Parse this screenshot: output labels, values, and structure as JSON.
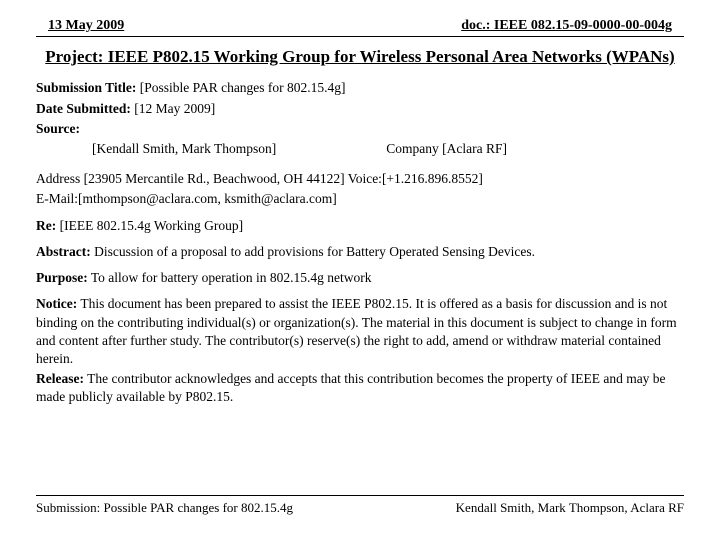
{
  "header": {
    "date": "13 May 2009",
    "docId": "doc.: IEEE 082.15-09-0000-00-004g"
  },
  "title": "Project: IEEE P802.15 Working Group for Wireless Personal Area Networks (WPANs)",
  "submission": {
    "titleLabel": "Submission Title:",
    "titleValue": " [Possible PAR changes for 802.15.4g]",
    "dateLabel": "Date Submitted:",
    "dateValue": " [12 May 2009]",
    "sourceLabel": "Source:",
    "sourceNames": "[Kendall Smith, Mark Thompson]",
    "companyLabel": "Company [Aclara RF]",
    "address": "Address [23905 Mercantile Rd., Beachwood, OH 44122]  Voice:[+1.216.896.8552]",
    "email": "E-Mail:[mthompson@aclara.com, ksmith@aclara.com]",
    "reLabel": "Re:",
    "reValue": " [IEEE 802.15.4g Working Group]",
    "abstractLabel": "Abstract:",
    "abstractValue": "  Discussion of a proposal to add provisions for Battery Operated Sensing Devices.",
    "purposeLabel": "Purpose:",
    "purposeValue": "  To allow for battery operation in 802.15.4g network",
    "noticeLabel": "Notice:",
    "noticeValue": "     This document has been prepared to assist the IEEE P802.15.  It is offered as a basis for discussion and is not binding on the contributing individual(s) or organization(s). The material in this document is subject to change in form and content after further study. The contributor(s) reserve(s) the right to add, amend or withdraw material contained herein.",
    "releaseLabel": "Release:",
    "releaseValue": "   The contributor acknowledges and accepts that this contribution becomes the property of IEEE and may be made publicly available by P802.15."
  },
  "footer": {
    "left": "Submission: Possible PAR changes for 802.15.4g",
    "right": "Kendall Smith, Mark Thompson, Aclara RF"
  }
}
